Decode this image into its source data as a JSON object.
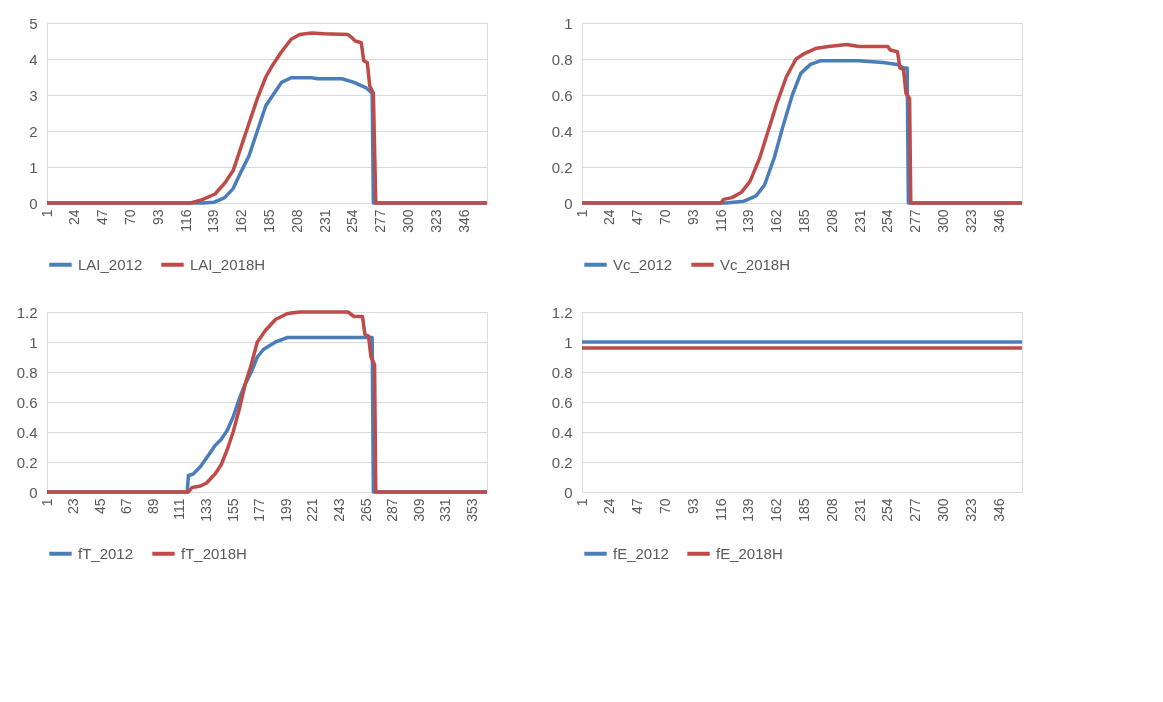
{
  "chart_data": [
    {
      "type": "line",
      "xlim": [
        1,
        365
      ],
      "xticks": [
        1,
        24,
        47,
        70,
        93,
        116,
        139,
        162,
        185,
        208,
        231,
        254,
        277,
        300,
        323,
        346
      ],
      "ylim": [
        0,
        5
      ],
      "yticks": [
        0,
        1,
        2,
        3,
        4,
        5
      ],
      "grid": "y",
      "legend": "bottom",
      "line_style": "solid",
      "series": [
        {
          "name": "LAI_2012",
          "color": "#4a7ebb",
          "x": [
            1,
            130,
            139,
            148,
            155,
            162,
            168,
            175,
            182,
            188,
            195,
            203,
            220,
            225,
            245,
            255,
            265,
            270,
            271,
            365
          ],
          "values": [
            0,
            0,
            0.02,
            0.15,
            0.4,
            0.9,
            1.3,
            2.0,
            2.7,
            3.0,
            3.35,
            3.48,
            3.48,
            3.45,
            3.45,
            3.35,
            3.2,
            3.05,
            0,
            0
          ]
        },
        {
          "name": "LAI_2018H",
          "color": "#be4b48",
          "x": [
            1,
            120,
            130,
            140,
            148,
            155,
            162,
            168,
            175,
            182,
            188,
            195,
            203,
            210,
            220,
            230,
            250,
            253,
            256,
            261,
            263,
            266,
            268,
            271,
            273,
            365
          ],
          "values": [
            0,
            0,
            0.1,
            0.25,
            0.55,
            0.9,
            1.6,
            2.2,
            2.9,
            3.5,
            3.85,
            4.2,
            4.55,
            4.68,
            4.72,
            4.7,
            4.68,
            4.6,
            4.5,
            4.45,
            3.95,
            3.9,
            3.25,
            3.05,
            0,
            0
          ]
        }
      ]
    },
    {
      "type": "line",
      "xlim": [
        1,
        365
      ],
      "xticks": [
        1,
        24,
        47,
        70,
        93,
        116,
        139,
        162,
        185,
        208,
        231,
        254,
        277,
        300,
        323,
        346
      ],
      "ylim": [
        0,
        1
      ],
      "yticks": [
        0,
        0.2,
        0.4,
        0.6,
        0.8,
        1
      ],
      "grid": "y",
      "legend": "bottom",
      "line_style": "solid",
      "series": [
        {
          "name": "Vc_2012",
          "color": "#4a7ebb",
          "x": [
            1,
            120,
            135,
            145,
            152,
            160,
            167,
            175,
            182,
            190,
            198,
            230,
            250,
            262,
            267,
            270,
            271,
            365
          ],
          "values": [
            0,
            0,
            0.01,
            0.04,
            0.1,
            0.25,
            0.42,
            0.6,
            0.72,
            0.77,
            0.79,
            0.79,
            0.78,
            0.77,
            0.75,
            0.75,
            0,
            0
          ]
        },
        {
          "name": "Vc_2018H",
          "color": "#be4b48",
          "x": [
            1,
            116,
            118,
            125,
            133,
            140,
            148,
            155,
            162,
            170,
            178,
            185,
            195,
            205,
            220,
            230,
            254,
            256,
            262,
            264,
            267,
            269,
            272,
            273,
            365
          ],
          "values": [
            0,
            0,
            0.02,
            0.03,
            0.06,
            0.12,
            0.25,
            0.4,
            0.55,
            0.7,
            0.8,
            0.83,
            0.86,
            0.87,
            0.88,
            0.87,
            0.87,
            0.85,
            0.84,
            0.75,
            0.74,
            0.61,
            0.58,
            0,
            0
          ]
        }
      ]
    },
    {
      "type": "line",
      "xlim": [
        1,
        365
      ],
      "xticks": [
        1,
        23,
        45,
        67,
        89,
        111,
        133,
        155,
        177,
        199,
        221,
        243,
        265,
        287,
        309,
        331,
        353
      ],
      "ylim": [
        0,
        1.2
      ],
      "yticks": [
        0,
        0.2,
        0.4,
        0.6,
        0.8,
        1,
        1.2
      ],
      "grid": "y",
      "legend": "bottom",
      "line_style": "solid",
      "series": [
        {
          "name": "fT_2012",
          "color": "#4a7ebb",
          "x": [
            1,
            117,
            118,
            122,
            128,
            135,
            140,
            145,
            150,
            155,
            160,
            165,
            170,
            175,
            180,
            190,
            200,
            210,
            270,
            271,
            365
          ],
          "values": [
            0,
            0,
            0.11,
            0.12,
            0.17,
            0.25,
            0.31,
            0.35,
            0.41,
            0.5,
            0.62,
            0.72,
            0.8,
            0.9,
            0.95,
            1.0,
            1.03,
            1.03,
            1.03,
            0,
            0
          ]
        },
        {
          "name": "fT_2018H",
          "color": "#be4b48",
          "x": [
            1,
            118,
            121,
            128,
            133,
            140,
            145,
            150,
            155,
            160,
            165,
            170,
            175,
            182,
            190,
            200,
            210,
            220,
            250,
            255,
            262,
            264,
            267,
            269,
            272,
            273,
            365
          ],
          "values": [
            0,
            0,
            0.03,
            0.04,
            0.06,
            0.12,
            0.18,
            0.28,
            0.4,
            0.55,
            0.72,
            0.85,
            1.0,
            1.08,
            1.15,
            1.19,
            1.2,
            1.2,
            1.2,
            1.17,
            1.17,
            1.05,
            1.04,
            0.9,
            0.85,
            0,
            0
          ]
        }
      ]
    },
    {
      "type": "line",
      "xlim": [
        1,
        365
      ],
      "xticks": [
        1,
        24,
        47,
        70,
        93,
        116,
        139,
        162,
        185,
        208,
        231,
        254,
        277,
        300,
        323,
        346
      ],
      "ylim": [
        0,
        1.2
      ],
      "yticks": [
        0,
        0.2,
        0.4,
        0.6,
        0.8,
        1,
        1.2
      ],
      "grid": "y",
      "legend": "bottom",
      "line_style": "solid",
      "series": [
        {
          "name": "fE_2012",
          "color": "#4a7ebb",
          "x": [
            1,
            92,
            183,
            274,
            365
          ],
          "values": [
            1.0,
            1.0,
            1.0,
            1.0,
            1.0
          ]
        },
        {
          "name": "fE_2018H",
          "color": "#be4b48",
          "x": [
            1,
            92,
            183,
            274,
            365
          ],
          "values": [
            0.96,
            0.96,
            0.96,
            0.96,
            0.96
          ]
        }
      ]
    }
  ]
}
